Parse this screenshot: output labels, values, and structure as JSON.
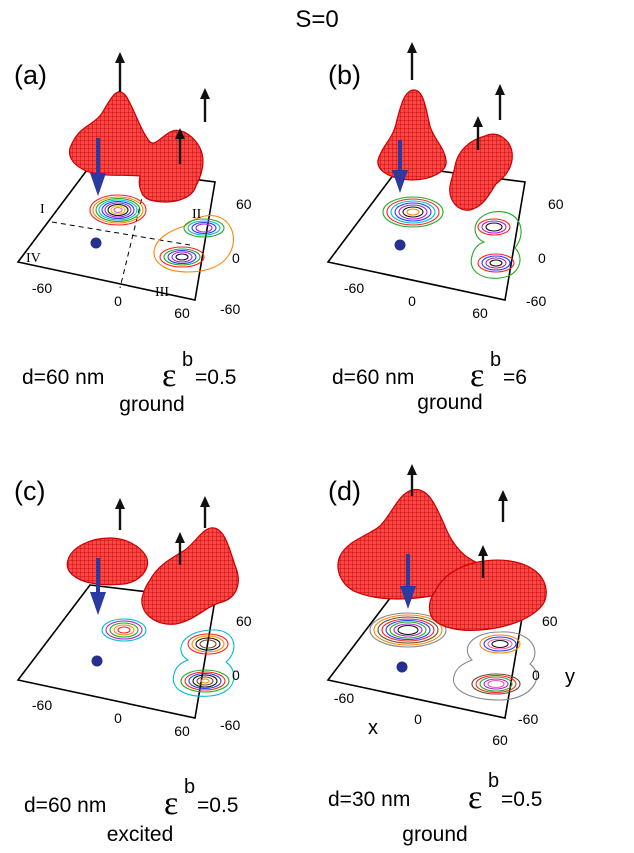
{
  "figure": {
    "title": "S=0",
    "ticks": {
      "n60": "-60",
      "zero": "0",
      "p60": "60"
    },
    "quadrants": [
      "I",
      "II",
      "III",
      "IV"
    ],
    "xlabel": "x",
    "ylabel": "y",
    "colors": {
      "density_mesh": "#ee1111",
      "spin_down_arrow": "#2b3aa0",
      "spin_up_arrow": "#111111",
      "dot": "#27308f",
      "contours": [
        "#ff2020",
        "#ff8800",
        "#d4c000",
        "#22aa22",
        "#00bcd4",
        "#1f3fff",
        "#aa22cc",
        "#111111",
        "#ff55aa",
        "#6b4b2a"
      ]
    },
    "panels": [
      {
        "label": "(a)",
        "d_text": "d=60 nm",
        "eps_symbol": "ε",
        "eps_sup": "b",
        "eps_value": "=0.5",
        "state": "ground"
      },
      {
        "label": "(b)",
        "d_text": "d=60 nm",
        "eps_symbol": "ε",
        "eps_sup": "b",
        "eps_value": "=6",
        "state": "ground"
      },
      {
        "label": "(c)",
        "d_text": "d=60 nm",
        "eps_symbol": "ε",
        "eps_sup": "b",
        "eps_value": "=0.5",
        "state": "excited"
      },
      {
        "label": "(d)",
        "d_text": "d=30 nm",
        "eps_symbol": "ε",
        "eps_sup": "b",
        "eps_value": "=0.5",
        "state": "ground"
      }
    ]
  }
}
